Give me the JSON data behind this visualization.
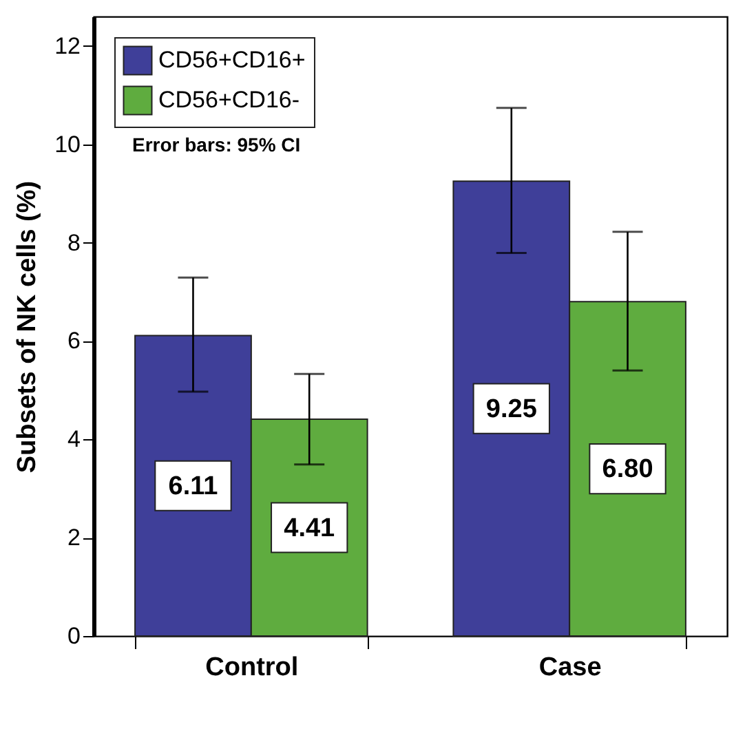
{
  "chart_data": {
    "type": "bar",
    "ylabel": "Subsets of NK cells (%)",
    "categories": [
      "Control",
      "Case"
    ],
    "series": [
      {
        "name": "CD56+CD16+",
        "color": "#3f3f99",
        "values": [
          6.11,
          9.25
        ],
        "errors": [
          [
            4.97,
            7.29
          ],
          [
            7.79,
            10.74
          ]
        ]
      },
      {
        "name": "CD56+CD16-",
        "color": "#5fac3f",
        "values": [
          4.41,
          6.8
        ],
        "errors": [
          [
            3.49,
            5.33
          ],
          [
            5.4,
            8.22
          ]
        ]
      }
    ],
    "value_labels": [
      [
        "6.11",
        "9.25"
      ],
      [
        "4.41",
        "6.80"
      ]
    ],
    "ylim": [
      0,
      12.6
    ],
    "yticks": [
      0,
      2,
      4,
      6,
      8,
      10,
      12
    ],
    "grid": false,
    "legend": "top left",
    "annotations": [
      "Error bars: 95% CI"
    ]
  }
}
